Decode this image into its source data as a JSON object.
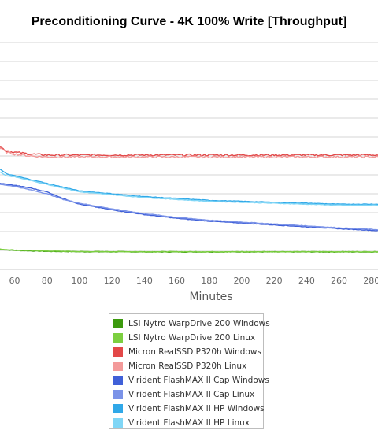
{
  "chart_data": {
    "type": "line",
    "title": "Preconditioning Curve - 4K 100% Write [Throughput]",
    "xlabel": "Minutes",
    "ylabel": "",
    "x_ticks": [
      60,
      80,
      100,
      120,
      140,
      160,
      180,
      200,
      220,
      240,
      260,
      280
    ],
    "x_tick_labels": [
      "60",
      "80",
      "100",
      "120",
      "140",
      "160",
      "180",
      "200",
      "220",
      "240",
      "260",
      "280"
    ],
    "xlim": [
      51,
      284
    ],
    "ylim": [
      0,
      12
    ],
    "grid": true,
    "legend": "bottom",
    "series": [
      {
        "name": "LSI Nytro WarpDrive 200 Windows",
        "color": "#3c9a0e",
        "x": [
          51,
          60,
          80,
          100,
          140,
          200,
          284
        ],
        "y": [
          1.05,
          1.0,
          0.95,
          0.93,
          0.92,
          0.92,
          0.92
        ]
      },
      {
        "name": "LSI Nytro WarpDrive 200 Linux",
        "color": "#7ccf40",
        "x": [
          51,
          60,
          80,
          100,
          140,
          200,
          284
        ],
        "y": [
          1.07,
          1.02,
          0.97,
          0.94,
          0.93,
          0.93,
          0.93
        ]
      },
      {
        "name": "Micron RealSSD P320h Windows",
        "color": "#e34848",
        "x": [
          51,
          55,
          60,
          70,
          80,
          100,
          150,
          200,
          250,
          284
        ],
        "y": [
          6.5,
          6.25,
          6.2,
          6.1,
          6.05,
          6.05,
          6.05,
          6.05,
          6.05,
          6.05
        ]
      },
      {
        "name": "Micron RealSSD P320h Linux",
        "color": "#f39a9a",
        "x": [
          51,
          55,
          60,
          70,
          80,
          100,
          150,
          200,
          250,
          284
        ],
        "y": [
          6.4,
          6.2,
          6.1,
          6.0,
          5.95,
          5.95,
          5.95,
          5.95,
          5.95,
          5.95
        ]
      },
      {
        "name": "Virident FlashMAX II Cap Windows",
        "color": "#4060d8",
        "x": [
          51,
          60,
          70,
          80,
          90,
          100,
          120,
          140,
          160,
          180,
          200,
          220,
          240,
          260,
          284
        ],
        "y": [
          4.55,
          4.45,
          4.3,
          4.1,
          3.75,
          3.45,
          3.15,
          2.9,
          2.7,
          2.55,
          2.45,
          2.35,
          2.25,
          2.15,
          2.05
        ]
      },
      {
        "name": "Virident FlashMAX II Cap Linux",
        "color": "#7b93e8",
        "x": [
          51,
          60,
          70,
          80,
          90,
          100,
          120,
          140,
          160,
          180,
          200,
          220,
          240,
          260,
          284
        ],
        "y": [
          4.5,
          4.4,
          4.2,
          4.0,
          3.7,
          3.5,
          3.2,
          2.95,
          2.75,
          2.6,
          2.5,
          2.4,
          2.3,
          2.2,
          2.1
        ]
      },
      {
        "name": "Virident FlashMAX II HP Windows",
        "color": "#30a8e8",
        "x": [
          51,
          55,
          60,
          70,
          80,
          90,
          100,
          120,
          140,
          160,
          180,
          200,
          220,
          240,
          260,
          284
        ],
        "y": [
          5.3,
          5.05,
          4.95,
          4.75,
          4.55,
          4.35,
          4.15,
          4.0,
          3.85,
          3.75,
          3.65,
          3.6,
          3.55,
          3.5,
          3.45,
          3.45
        ]
      },
      {
        "name": "Virident FlashMAX II HP Linux",
        "color": "#80d6f6",
        "x": [
          51,
          55,
          60,
          70,
          80,
          90,
          100,
          120,
          140,
          160,
          180,
          200,
          220,
          240,
          260,
          284
        ],
        "y": [
          5.15,
          4.95,
          4.9,
          4.7,
          4.5,
          4.3,
          4.1,
          3.95,
          3.8,
          3.7,
          3.6,
          3.55,
          3.5,
          3.45,
          3.4,
          3.4
        ]
      }
    ]
  }
}
